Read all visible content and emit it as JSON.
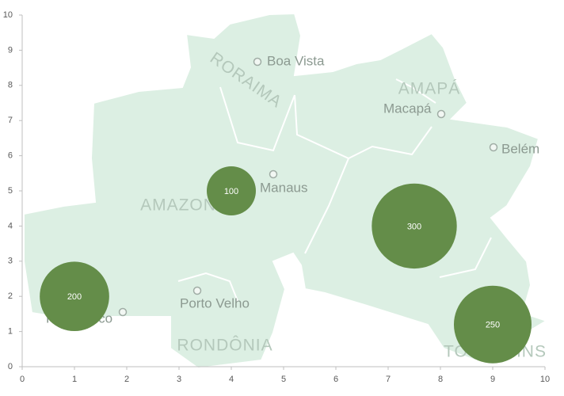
{
  "chart_data": {
    "type": "bubble",
    "series": [
      {
        "color": "#648d49",
        "x": [
          1,
          4,
          7.5,
          9
        ],
        "y": [
          2,
          5,
          4,
          1.2
        ],
        "sizes": [
          200,
          100,
          300,
          250
        ]
      }
    ],
    "xlim": [
      0,
      10
    ],
    "ylim": [
      0,
      10
    ],
    "xticks": [
      0,
      1,
      2,
      3,
      4,
      5,
      6,
      7,
      8,
      9,
      10
    ],
    "yticks": [
      0,
      1,
      2,
      3,
      4,
      5,
      6,
      7,
      8,
      9,
      10
    ]
  },
  "map": {
    "states": [
      "RORAIMA",
      "AMAPÁ",
      "AMAZONAS",
      "RONDÔNIA",
      "TOCANTINS"
    ],
    "cities": [
      "Boa Vista",
      "Manaus",
      "Macapá",
      "Belém",
      "Porto Velho",
      "Rio Branco"
    ]
  }
}
